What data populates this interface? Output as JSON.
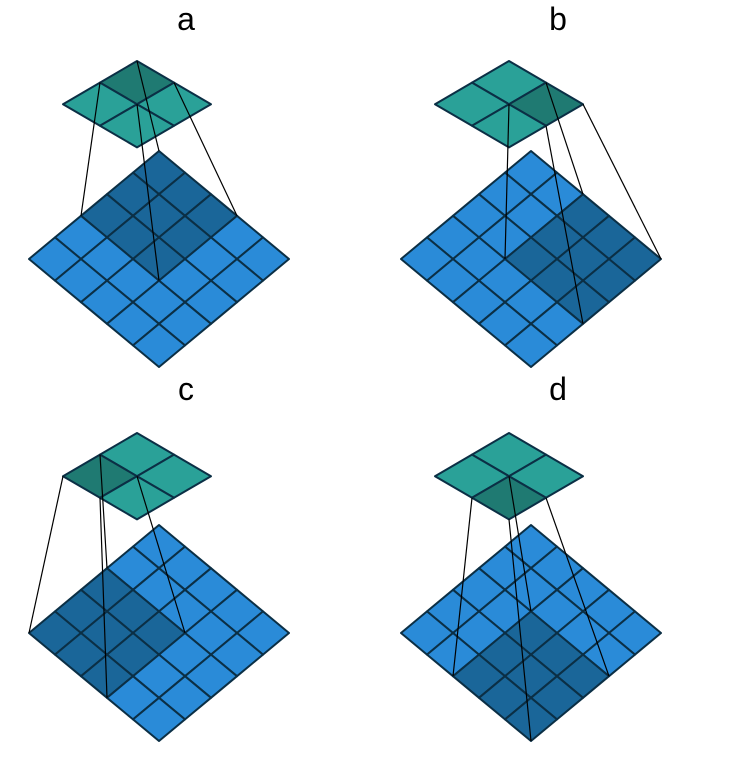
{
  "colors": {
    "input_cell": "#2a8bd8",
    "input_active": "#1a6699",
    "output_cell": "#2aa198",
    "output_active": "#1f7a72",
    "grid_line": "#0b2f45",
    "connector": "#000000"
  },
  "input_grid": {
    "rows": 5,
    "cols": 5
  },
  "output_grid": {
    "rows": 2,
    "cols": 2
  },
  "kernel_size": 3,
  "panels": [
    {
      "label": "a",
      "active_output": [
        0,
        0
      ],
      "receptive_field": {
        "row": 0,
        "col": 0
      }
    },
    {
      "label": "b",
      "active_output": [
        0,
        1
      ],
      "receptive_field": {
        "row": 0,
        "col": 2
      }
    },
    {
      "label": "c",
      "active_output": [
        1,
        0
      ],
      "receptive_field": {
        "row": 2,
        "col": 0
      }
    },
    {
      "label": "d",
      "active_output": [
        1,
        1
      ],
      "receptive_field": {
        "row": 2,
        "col": 2
      }
    }
  ]
}
